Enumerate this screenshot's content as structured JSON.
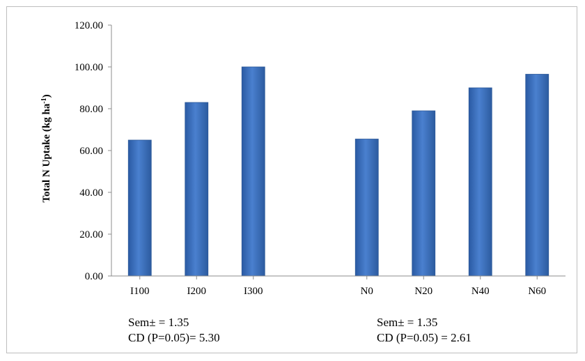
{
  "chart_data": {
    "type": "bar",
    "ylabel": "Total N Uptake (kg ha-1)",
    "ylabel_main": "Total N Uptake (kg ha",
    "ylabel_sup": "-1",
    "ylabel_close": ")",
    "ylim": [
      0,
      120
    ],
    "yticks": [
      "0.00",
      "20.00",
      "40.00",
      "60.00",
      "80.00",
      "100.00",
      "120.00"
    ],
    "categories": [
      "I100",
      "I200",
      "I300",
      "",
      "N0",
      "N20",
      "N40",
      "N60"
    ],
    "values": [
      65,
      83,
      100,
      null,
      65.5,
      79,
      90,
      96.5
    ],
    "bar_color": "#3f72bf",
    "grid": false
  },
  "annotations": {
    "left": {
      "sem": "Sem± = 1.35",
      "cd": "CD (P=0.05)= 5.30"
    },
    "right": {
      "sem": "Sem± = 1.35",
      "cd": "CD (P=0.05) = 2.61"
    }
  }
}
